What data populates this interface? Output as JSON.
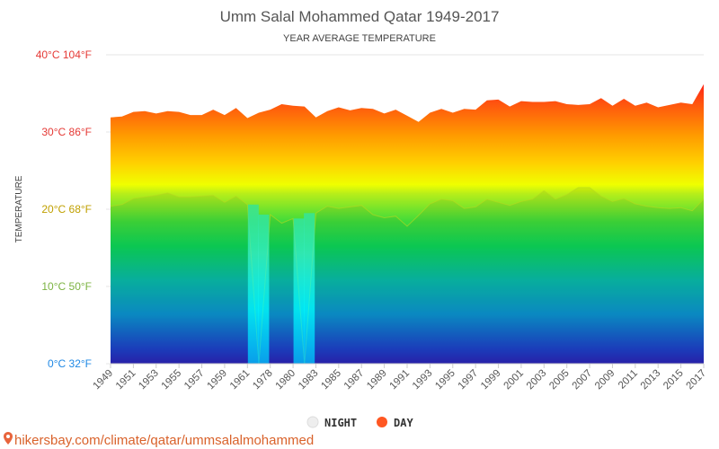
{
  "chart_data": {
    "type": "area",
    "title": "Umm Salal Mohammed Qatar 1949-2017",
    "subtitle": "YEAR AVERAGE TEMPERATURE",
    "ylabel": "TEMPERATURE",
    "ylim": [
      0,
      40
    ],
    "y_ticks": [
      {
        "value": 0,
        "label": "0°C 32°F",
        "color": "#1e88e5"
      },
      {
        "value": 10,
        "label": "10°C 50°F",
        "color": "#7cb342"
      },
      {
        "value": 20,
        "label": "20°C 68°F",
        "color": "#c0a000"
      },
      {
        "value": 30,
        "label": "30°C 86°F",
        "color": "#e53935"
      },
      {
        "value": 40,
        "label": "40°C 104°F",
        "color": "#e53935"
      }
    ],
    "x_tick_labels": [
      "1949",
      "1951",
      "1953",
      "1955",
      "1957",
      "1959",
      "1961",
      "1978",
      "1980",
      "1983",
      "1985",
      "1987",
      "1989",
      "1991",
      "1993",
      "1995",
      "1997",
      "1999",
      "2001",
      "2003",
      "2005",
      "2007",
      "2009",
      "2011",
      "2013",
      "2015",
      "2017"
    ],
    "x": [
      "1949",
      "1950",
      "1951",
      "1952",
      "1953",
      "1954",
      "1955",
      "1956",
      "1957",
      "1958",
      "1959",
      "1960",
      "1961",
      "1962",
      "1978",
      "1979",
      "1980",
      "1981",
      "1983",
      "1984",
      "1985",
      "1986",
      "1987",
      "1988",
      "1989",
      "1990",
      "1991",
      "1992",
      "1993",
      "1994",
      "1995",
      "1996",
      "1997",
      "1998",
      "1999",
      "2000",
      "2001",
      "2002",
      "2003",
      "2004",
      "2005",
      "2006",
      "2007",
      "2008",
      "2009",
      "2010",
      "2011",
      "2012",
      "2013",
      "2014",
      "2015",
      "2016",
      "2017"
    ],
    "series": [
      {
        "name": "DAY",
        "color": "#ff5722",
        "values": [
          31.9,
          32.0,
          32.6,
          32.7,
          32.4,
          32.7,
          32.6,
          32.2,
          32.2,
          32.9,
          32.2,
          33.1,
          31.8,
          32.5,
          32.9,
          33.6,
          33.4,
          33.3,
          31.9,
          32.7,
          33.2,
          32.8,
          33.1,
          33.0,
          32.4,
          32.9,
          32.1,
          31.3,
          32.5,
          33.0,
          32.5,
          33.0,
          32.9,
          34.1,
          34.2,
          33.3,
          34.0,
          33.9,
          33.9,
          34.0,
          33.6,
          33.5,
          33.6,
          34.4,
          33.4,
          34.3,
          33.4,
          33.8,
          33.2,
          33.5,
          33.8,
          33.6,
          36.2
        ]
      },
      {
        "name": "NIGHT",
        "color": "#eeeeee",
        "values": [
          20.4,
          20.6,
          21.4,
          21.6,
          21.8,
          22.1,
          21.6,
          21.6,
          21.7,
          21.8,
          20.9,
          21.7,
          20.6,
          0,
          19.3,
          18.2,
          18.8,
          0,
          19.5,
          20.4,
          20.1,
          20.3,
          20.5,
          19.3,
          18.9,
          19.1,
          17.8,
          19.2,
          20.7,
          21.3,
          21.1,
          20.1,
          20.3,
          21.3,
          20.9,
          20.5,
          21.0,
          21.3,
          22.4,
          21.3,
          21.9,
          22.8,
          22.8,
          21.7,
          21.0,
          21.4,
          20.7,
          20.4,
          20.2,
          20.1,
          20.2,
          19.8,
          21.3
        ]
      }
    ],
    "legend": [
      {
        "name": "NIGHT",
        "color": "#eeeeee"
      },
      {
        "name": "DAY",
        "color": "#ff5722"
      }
    ],
    "legend_position": "bottom",
    "grid": true
  },
  "footer": {
    "source": "hikersbay.com/climate/qatar/ummsalalmohammed",
    "pin_icon": "map-pin-icon",
    "pin_color": "#e8643c"
  }
}
